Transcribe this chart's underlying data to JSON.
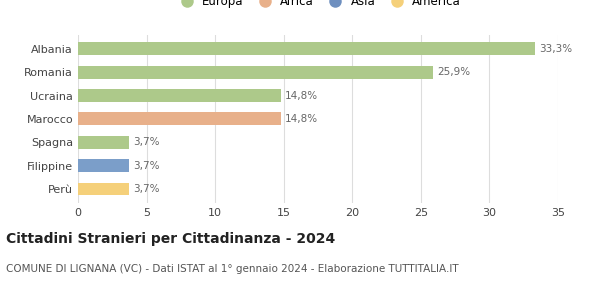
{
  "categories": [
    "Albania",
    "Romania",
    "Ucraina",
    "Marocco",
    "Spagna",
    "Filippine",
    "Perù"
  ],
  "values": [
    33.3,
    25.9,
    14.8,
    14.8,
    3.7,
    3.7,
    3.7
  ],
  "labels": [
    "33,3%",
    "25,9%",
    "14,8%",
    "14,8%",
    "3,7%",
    "3,7%",
    "3,7%"
  ],
  "bar_colors": [
    "#adc98a",
    "#adc98a",
    "#adc98a",
    "#e8b08a",
    "#adc98a",
    "#7b9ec9",
    "#f5d07a"
  ],
  "legend": [
    {
      "label": "Europa",
      "color": "#adc98a"
    },
    {
      "label": "Africa",
      "color": "#e8b08a"
    },
    {
      "label": "Asia",
      "color": "#6e8fbf"
    },
    {
      "label": "America",
      "color": "#f5d07a"
    }
  ],
  "xlim": [
    0,
    35
  ],
  "xticks": [
    0,
    5,
    10,
    15,
    20,
    25,
    30,
    35
  ],
  "title": "Cittadini Stranieri per Cittadinanza - 2024",
  "subtitle": "COMUNE DI LIGNANA (VC) - Dati ISTAT al 1° gennaio 2024 - Elaborazione TUTTITALIA.IT",
  "title_fontsize": 10,
  "subtitle_fontsize": 7.5,
  "label_fontsize": 7.5,
  "tick_fontsize": 8,
  "background_color": "#ffffff",
  "grid_color": "#dddddd",
  "bar_height": 0.55
}
